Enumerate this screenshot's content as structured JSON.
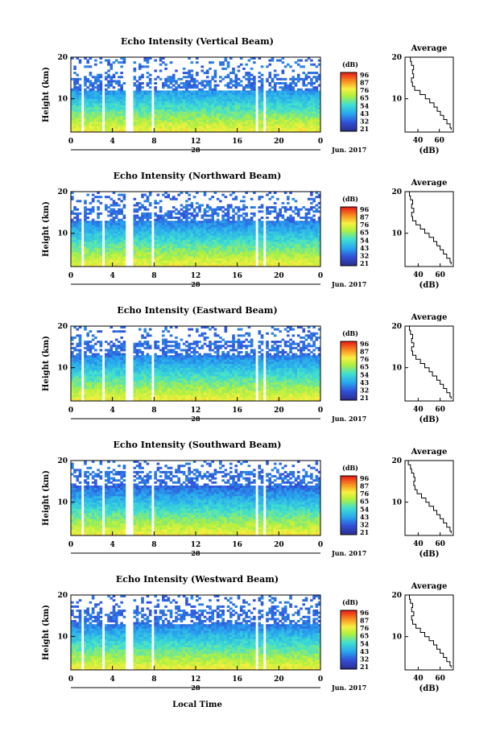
{
  "figure": {
    "xlabel": "Local Time",
    "month_label": "Jun. 2017",
    "colorbar_unit": "(dB)",
    "avg_title": "Average",
    "avg_xlabel": "(dB)"
  },
  "chart_data": [
    {
      "type": "heatmap",
      "title": "Echo Intensity (Vertical Beam)",
      "ylabel": "Height (km)",
      "xlabel": "",
      "date_label": "28",
      "x_ticks": [
        "0",
        "4",
        "8",
        "12",
        "16",
        "20",
        "0"
      ],
      "y_ticks": [
        "10",
        "20"
      ],
      "xlim": [
        0,
        24
      ],
      "ylim": [
        2,
        20
      ],
      "colorbar_ticks": [
        "96",
        "87",
        "76",
        "65",
        "54",
        "43",
        "32",
        "21"
      ],
      "data_gaps_hours": [
        [
          0.9,
          1.2
        ],
        [
          3.0,
          3.3
        ],
        [
          5.2,
          6.0
        ],
        [
          7.7,
          8.1
        ],
        [
          17.7,
          18.1
        ],
        [
          18.4,
          18.7
        ]
      ],
      "echo_top_km": 15,
      "profile_avg": {
        "title": "Average",
        "x_ticks": [
          "40",
          "60"
        ],
        "y_ticks": [
          "10",
          "20"
        ],
        "xlim": [
          28,
          73
        ],
        "heights_km": [
          2.5,
          3,
          4,
          5,
          6,
          7,
          8,
          9,
          10,
          11,
          12,
          13,
          14,
          15,
          16,
          17,
          18,
          19,
          20
        ],
        "values_db": [
          71,
          70,
          67,
          64,
          61,
          58,
          55,
          51,
          47,
          42,
          37,
          35,
          34,
          36,
          35,
          36,
          34,
          33,
          33
        ]
      }
    },
    {
      "type": "heatmap",
      "title": "Echo Intensity (Northward Beam)",
      "ylabel": "Height (km)",
      "xlabel": "",
      "date_label": "28",
      "x_ticks": [
        "0",
        "4",
        "8",
        "12",
        "16",
        "20",
        "0"
      ],
      "y_ticks": [
        "10",
        "20"
      ],
      "xlim": [
        0,
        24
      ],
      "ylim": [
        2,
        20
      ],
      "colorbar_ticks": [
        "96",
        "87",
        "76",
        "65",
        "54",
        "43",
        "32",
        "21"
      ],
      "data_gaps_hours": [
        [
          0.9,
          1.2
        ],
        [
          3.0,
          3.3
        ],
        [
          5.2,
          6.0
        ],
        [
          7.7,
          8.1
        ],
        [
          17.7,
          18.1
        ],
        [
          18.4,
          18.7
        ]
      ],
      "echo_top_km": 16,
      "profile_avg": {
        "title": "Average",
        "x_ticks": [
          "40",
          "60"
        ],
        "y_ticks": [
          "10",
          "20"
        ],
        "xlim": [
          28,
          72
        ],
        "heights_km": [
          2.5,
          3,
          4,
          5,
          6,
          7,
          8,
          9,
          10,
          11,
          12,
          13,
          14,
          15,
          16,
          17,
          18,
          19,
          20
        ],
        "values_db": [
          70,
          69,
          66,
          63,
          60,
          57,
          54,
          50,
          46,
          42,
          38,
          35,
          34,
          36,
          34,
          35,
          33,
          32,
          32
        ]
      }
    },
    {
      "type": "heatmap",
      "title": "Echo Intensity (Eastward Beam)",
      "ylabel": "Height (km)",
      "xlabel": "",
      "date_label": "28",
      "x_ticks": [
        "0",
        "4",
        "8",
        "12",
        "16",
        "20",
        "0"
      ],
      "y_ticks": [
        "10",
        "20"
      ],
      "xlim": [
        0,
        24
      ],
      "ylim": [
        2,
        20
      ],
      "colorbar_ticks": [
        "96",
        "87",
        "76",
        "65",
        "54",
        "43",
        "32",
        "21"
      ],
      "data_gaps_hours": [
        [
          0.9,
          1.2
        ],
        [
          3.0,
          3.3
        ],
        [
          5.2,
          6.0
        ],
        [
          7.7,
          8.1
        ],
        [
          17.7,
          18.1
        ],
        [
          18.4,
          18.7
        ]
      ],
      "echo_top_km": 16,
      "profile_avg": {
        "title": "Average",
        "x_ticks": [
          "40",
          "60"
        ],
        "y_ticks": [
          "10",
          "20"
        ],
        "xlim": [
          28,
          72
        ],
        "heights_km": [
          2.5,
          3,
          4,
          5,
          6,
          7,
          8,
          9,
          10,
          11,
          12,
          13,
          14,
          15,
          16,
          17,
          18,
          19,
          20
        ],
        "values_db": [
          70,
          69,
          66,
          63,
          60,
          57,
          53,
          50,
          46,
          42,
          38,
          35,
          34,
          36,
          34,
          35,
          33,
          32,
          32
        ]
      }
    },
    {
      "type": "heatmap",
      "title": "Echo Intensity (Southward Beam)",
      "ylabel": "Height (km)",
      "xlabel": "",
      "date_label": "28",
      "x_ticks": [
        "0",
        "4",
        "8",
        "12",
        "16",
        "20",
        "0"
      ],
      "y_ticks": [
        "10",
        "20"
      ],
      "xlim": [
        0,
        24
      ],
      "ylim": [
        2,
        20
      ],
      "colorbar_ticks": [
        "96",
        "87",
        "76",
        "65",
        "54",
        "43",
        "32",
        "21"
      ],
      "data_gaps_hours": [
        [
          0.9,
          1.2
        ],
        [
          3.0,
          3.3
        ],
        [
          5.2,
          6.0
        ],
        [
          7.7,
          8.1
        ],
        [
          17.7,
          18.1
        ],
        [
          18.4,
          18.7
        ]
      ],
      "echo_top_km": 17,
      "profile_avg": {
        "title": "Average",
        "x_ticks": [
          "40",
          "60"
        ],
        "y_ticks": [
          "10",
          "20"
        ],
        "xlim": [
          28,
          72
        ],
        "heights_km": [
          2.5,
          3,
          4,
          5,
          6,
          7,
          8,
          9,
          10,
          11,
          12,
          13,
          14,
          15,
          16,
          17,
          18,
          19,
          20
        ],
        "values_db": [
          70,
          69,
          66,
          63,
          60,
          57,
          54,
          50,
          47,
          43,
          39,
          37,
          36,
          37,
          36,
          34,
          33,
          31,
          30
        ]
      }
    },
    {
      "type": "heatmap",
      "title": "Echo Intensity (Westward Beam)",
      "ylabel": "Height (km)",
      "xlabel": "Local Time",
      "date_label": "28",
      "x_ticks": [
        "0",
        "4",
        "8",
        "12",
        "16",
        "20",
        "0"
      ],
      "y_ticks": [
        "10",
        "20"
      ],
      "xlim": [
        0,
        24
      ],
      "ylim": [
        2,
        20
      ],
      "colorbar_ticks": [
        "96",
        "87",
        "76",
        "65",
        "54",
        "43",
        "32",
        "21"
      ],
      "data_gaps_hours": [
        [
          0.9,
          1.2
        ],
        [
          3.0,
          3.3
        ],
        [
          5.2,
          6.0
        ],
        [
          7.7,
          8.1
        ],
        [
          17.7,
          18.1
        ],
        [
          18.4,
          18.7
        ]
      ],
      "echo_top_km": 16,
      "profile_avg": {
        "title": "Average",
        "x_ticks": [
          "40",
          "60"
        ],
        "y_ticks": [
          "10",
          "20"
        ],
        "xlim": [
          28,
          72
        ],
        "heights_km": [
          2.5,
          3,
          4,
          5,
          6,
          7,
          8,
          9,
          10,
          11,
          12,
          13,
          14,
          15,
          16,
          17,
          18,
          19,
          20
        ],
        "values_db": [
          70,
          69,
          66,
          63,
          60,
          57,
          54,
          50,
          46,
          42,
          38,
          35,
          34,
          36,
          34,
          35,
          33,
          32,
          32
        ]
      }
    }
  ]
}
